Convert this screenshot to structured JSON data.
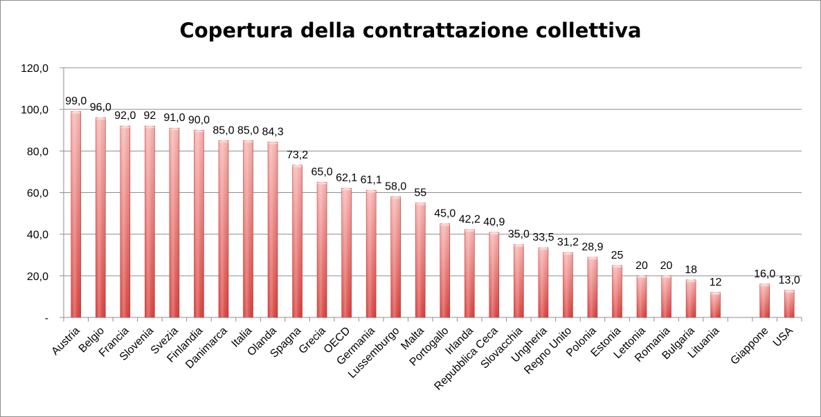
{
  "chart_data": {
    "type": "bar",
    "title": "Copertura della contrattazione collettiva",
    "xlabel": "",
    "ylabel": "",
    "ylim": [
      0,
      120
    ],
    "yticks": [
      "-",
      "20,0",
      "40,0",
      "60,0",
      "80,0",
      "100,0",
      "120,0"
    ],
    "grid": true,
    "legend": "none",
    "colors": {
      "bar_top": "#f6b3b1",
      "bar_bottom": "#d8403c",
      "grid": "#8c8c8c"
    },
    "categories": [
      "Austria",
      "Belgio",
      "Francia",
      "Slovenia",
      "Svezia",
      "Finlandia",
      "Danimarca",
      "Italia",
      "Olanda",
      "Spagna",
      "Grecia",
      "OECD",
      "Germania",
      "Lussemburgo",
      "Malta",
      "Portogallo",
      "Irlanda",
      "Repubblica Ceca",
      "Slovacchia",
      "Ungheria",
      "Regno Unito",
      "Polonia",
      "Estonia",
      "Lettonia",
      "Romania",
      "Bulgaria",
      "Lituania",
      "",
      "Giappone",
      "USA"
    ],
    "values": [
      99.0,
      96.0,
      92.0,
      92,
      91.0,
      90.0,
      85.0,
      85.0,
      84.3,
      73.2,
      65.0,
      62.1,
      61.1,
      58.0,
      55,
      45.0,
      42.2,
      40.9,
      35.0,
      33.5,
      31.2,
      28.9,
      25,
      20,
      20,
      18,
      12,
      null,
      16.0,
      13.0
    ],
    "labels": [
      "99,0",
      "96,0",
      "92,0",
      "92",
      "91,0",
      "90,0",
      "85,0",
      "85,0",
      "84,3",
      "73,2",
      "65,0",
      "62,1",
      "61,1",
      "58,0",
      "55",
      "45,0",
      "42,2",
      "40,9",
      "35,0",
      "33,5",
      "31,2",
      "28,9",
      "25",
      "20",
      "20",
      "18",
      "12",
      "",
      "16,0",
      "13,0"
    ]
  }
}
